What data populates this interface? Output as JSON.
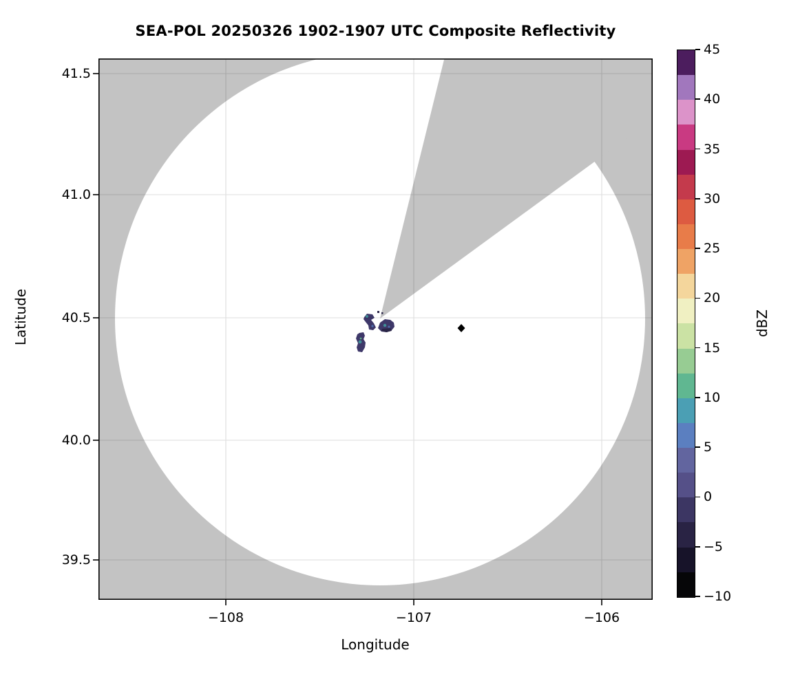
{
  "title": "SEA-POL 20250326 1902-1907 UTC Composite Reflectivity",
  "axes": {
    "xlabel": "Longitude",
    "ylabel": "Latitude",
    "x_ticks": [
      "−108",
      "−107",
      "−106"
    ],
    "y_ticks": [
      "41.5",
      "41.0",
      "40.5",
      "40.0",
      "39.5"
    ]
  },
  "colorbar": {
    "label": "dBZ",
    "tick_labels": [
      "45",
      "40",
      "35",
      "30",
      "25",
      "20",
      "15",
      "10",
      "5",
      "0",
      "−5",
      "−10"
    ],
    "value_range": [
      -10,
      45
    ],
    "band_colors_bottom_to_top": [
      "#060608",
      "#171329",
      "#292344",
      "#3c3663",
      "#555088",
      "#62659f",
      "#5b7fc0",
      "#4b9fb4",
      "#60b791",
      "#97cc93",
      "#cbe2a4",
      "#f0f0c2",
      "#f4d69c",
      "#efa365",
      "#e87c49",
      "#dd5b41",
      "#c43a4c",
      "#9d1a52",
      "#c93a82",
      "#dc93c9",
      "#a177bd",
      "#4c1d5e"
    ]
  },
  "colors": {
    "no_data_gray": "#c3c3c3",
    "scan_white": "#ffffff",
    "grid": "#000000",
    "frame": "#000000",
    "echo_base": "#3e3869",
    "echo_dark": "#2a2547",
    "echo_core_teal": "#3f8f98",
    "echo_core_blue": "#4f6fae",
    "echo_core_green": "#5fae85",
    "marker_black": "#000000"
  },
  "chart_data": {
    "type": "heatmap",
    "title": "SEA-POL 20250326 1902-1907 UTC Composite Reflectivity",
    "xlabel": "Longitude",
    "ylabel": "Latitude",
    "xlim": [
      -108.68,
      -105.73
    ],
    "ylim": [
      39.34,
      41.56
    ],
    "grid": true,
    "colorbar_label": "dBZ",
    "colorbar_range": [
      -10,
      45
    ],
    "colorbar_tick_step": 5,
    "radar": {
      "name": "SEA-POL",
      "center_lon": -107.18,
      "center_lat": 40.5,
      "scan_radius_deg_lon": 1.41,
      "scan_radius_deg_lat": 1.1,
      "scan_radius_km": 120,
      "missing_sector_azimuth_deg": [
        14,
        54
      ]
    },
    "echoes": [
      {
        "lon": -107.23,
        "lat": 40.49,
        "approx_dbz": [
          -5,
          8
        ],
        "note": "small bent cell just W of radar"
      },
      {
        "lon": -107.15,
        "lat": 40.46,
        "approx_dbz": [
          -5,
          8
        ],
        "note": "round cell just SE of radar"
      },
      {
        "lon": -107.28,
        "lat": 40.41,
        "approx_dbz": [
          -5,
          10
        ],
        "note": "elongated cell SW of radar"
      }
    ],
    "point_marker": {
      "lon": -106.75,
      "lat": 40.46,
      "shape": "diamond",
      "color": "#000000"
    }
  }
}
